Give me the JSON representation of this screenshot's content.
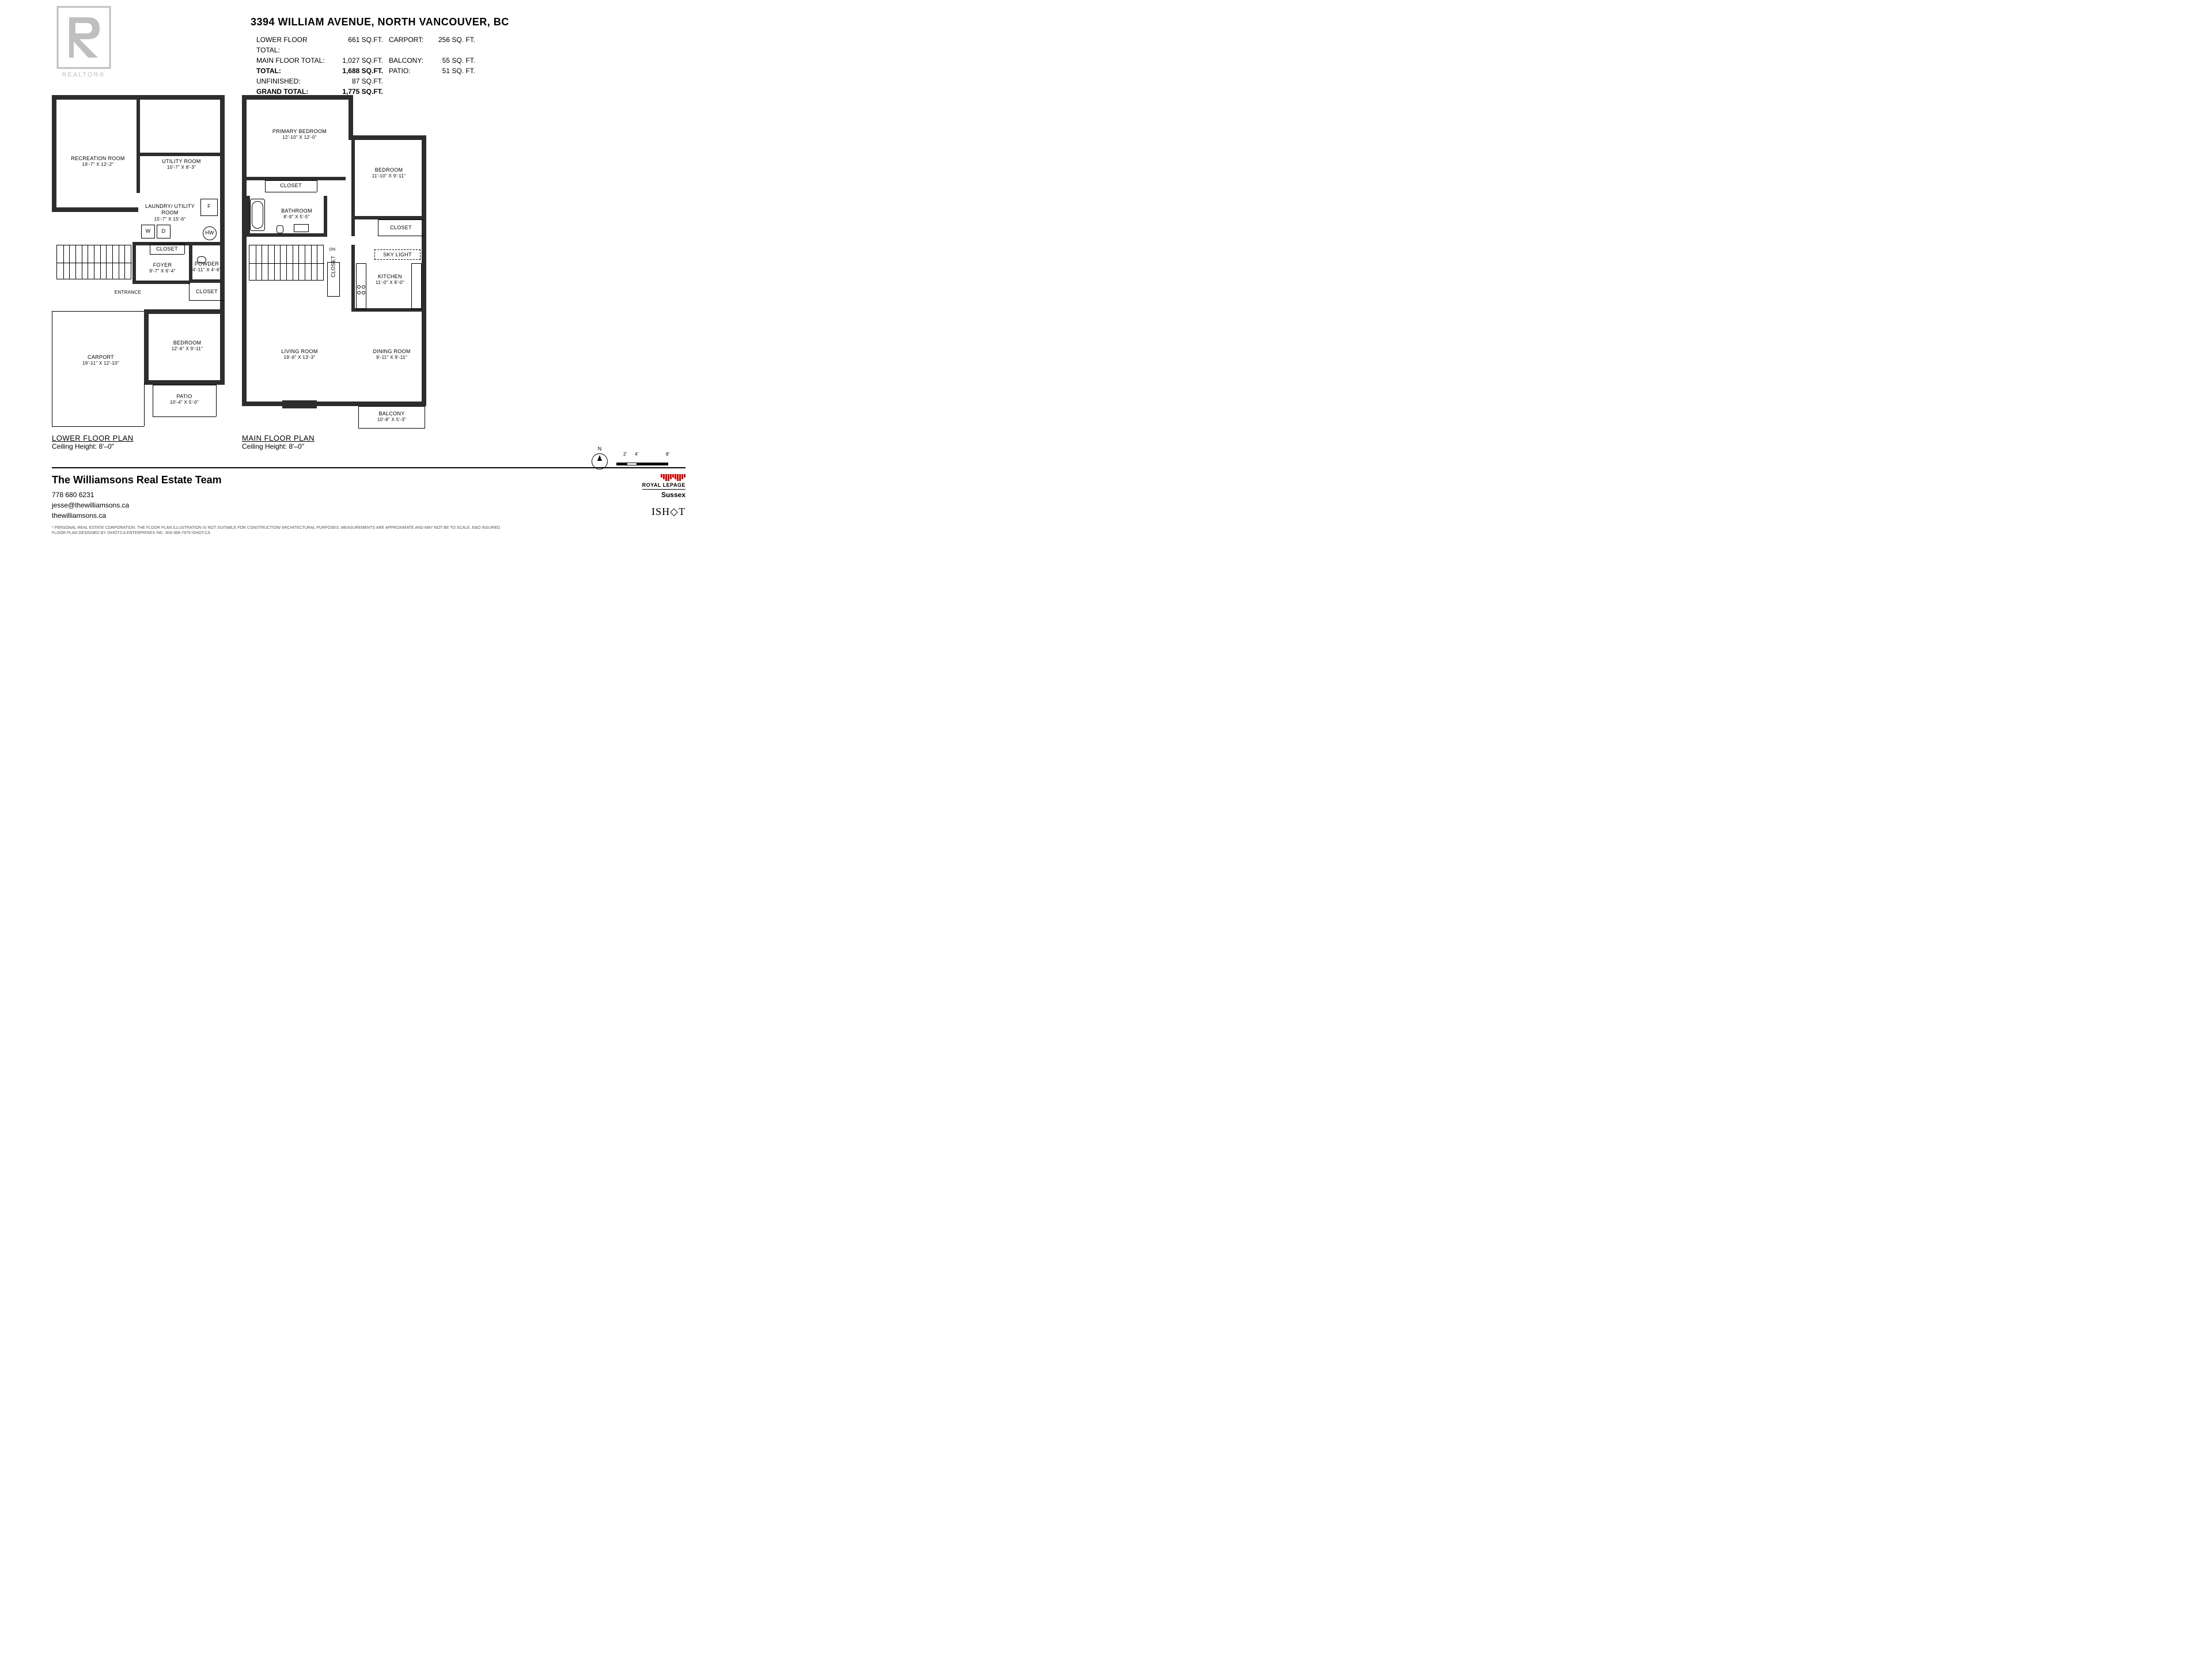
{
  "address": "3394 WILLIAM AVENUE, NORTH VANCOUVER, BC",
  "watermark": {
    "text": "REALTOR",
    "color": "#bfbfbf"
  },
  "stats": {
    "lower_floor": {
      "label": "LOWER FLOOR TOTAL:",
      "value": "661 SQ.FT."
    },
    "main_floor": {
      "label": "MAIN FLOOR TOTAL:",
      "value": "1,027 SQ.FT."
    },
    "total": {
      "label": "TOTAL:",
      "value": "1,688 SQ.FT."
    },
    "unfinished": {
      "label": "UNFINISHED:",
      "value": "87 SQ.FT."
    },
    "grand_total": {
      "label": "GRAND TOTAL:",
      "value": "1,775 SQ.FT."
    },
    "carport": {
      "label": "CARPORT:",
      "value": "256 SQ. FT."
    },
    "balcony": {
      "label": "BALCONY:",
      "value": "55 SQ. FT."
    },
    "patio": {
      "label": "PATIO:",
      "value": "51 SQ. FT."
    }
  },
  "lower": {
    "title": "LOWER FLOOR PLAN",
    "ceiling": "Ceiling Height: 8'–0\"",
    "entrance_label": "ENTRANCE",
    "rooms": {
      "recreation": {
        "name": "RECREATION ROOM",
        "dim": "19'-7\" X 12'-2\""
      },
      "utility": {
        "name": "UTILITY ROOM",
        "dim": "10'-7\" X 8'-3\""
      },
      "laundry": {
        "name": "LAUNDRY/ UTILITY ROOM",
        "dim": "15'-7\" X 15'-6\""
      },
      "foyer": {
        "name": "FOYER",
        "dim": "9'-7\" X 6'-4\""
      },
      "powder": {
        "name": "POWDER",
        "dim": "4'-11\" X 4'-6\""
      },
      "closet1": {
        "name": "CLOSET"
      },
      "closet2": {
        "name": "CLOSET"
      },
      "bedroom": {
        "name": "BEDROOM",
        "dim": "12'-6\" X 9'-11\""
      },
      "carport": {
        "name": "CARPORT",
        "dim": "19'-11\" X 12'-10\""
      },
      "patio": {
        "name": "PATIO",
        "dim": "10'-4\" X 5'-0\""
      }
    },
    "appliances": {
      "f": "F",
      "w": "W",
      "d": "D",
      "hw": "HW"
    }
  },
  "main": {
    "title": "MAIN FLOOR PLAN",
    "ceiling": "Ceiling Height: 8'–0\"",
    "dn_label": "DN",
    "rooms": {
      "primary": {
        "name": "PRIMARY BEDROOM",
        "dim": "12'-10\" X 12'-0\""
      },
      "bedroom": {
        "name": "BEDROOM",
        "dim": "11'-10\" X 9'-11\""
      },
      "closet1": {
        "name": "CLOSET"
      },
      "closet2": {
        "name": "CLOSET"
      },
      "closet3": {
        "name": "CLOSET"
      },
      "bathroom": {
        "name": "BATHROOM",
        "dim": "8'-9\" X 5'-5\""
      },
      "skylight": {
        "name": "SKY LIGHT"
      },
      "kitchen": {
        "name": "KITCHEN",
        "dim": "11'-0\" X 8'-0\""
      },
      "living": {
        "name": "LIVING ROOM",
        "dim": "19'-6\" X 13'-3\""
      },
      "dining": {
        "name": "DINING ROOM",
        "dim": "9'-11\" X 9'-11\""
      },
      "balcony": {
        "name": "BALCONY",
        "dim": "10'-8\" X 5'-3\""
      }
    }
  },
  "compass": {
    "n": "N",
    "ticks": [
      "2'",
      "4'",
      "8'"
    ]
  },
  "footer": {
    "team": "The Williamsons Real Estate Team",
    "phone": "778 680 6231",
    "email": "jesse@thewilliamsons.ca",
    "web": "thewilliamsons.ca",
    "disclaimer": "* PERSONAL REAL ESTATE CORPORATION. THE FLOOR PLAN ILLUSTRATION IS NOT SUITABLE FOR CONSTRUCTION/ ARCHITECTURAL PURPOSES. MEASUREMENTS ARE APPROXIMATE AND MAY NOT BE TO SCALE. E&O INSURED. FLOOR PLAN DESIGNED BY ISHOT.CA ENTERPRISES INC. 604-368-7979  ISHOT.CA",
    "brand1": "ROYAL LEPAGE",
    "brand1_sub": "Sussex",
    "brand2": "ISH◇T"
  },
  "style": {
    "wall_color": "#2d2d2d",
    "wall_thick": 8,
    "wall_thin": 1,
    "plan_width": 300,
    "plan_height": 580,
    "bg": "#ffffff"
  }
}
